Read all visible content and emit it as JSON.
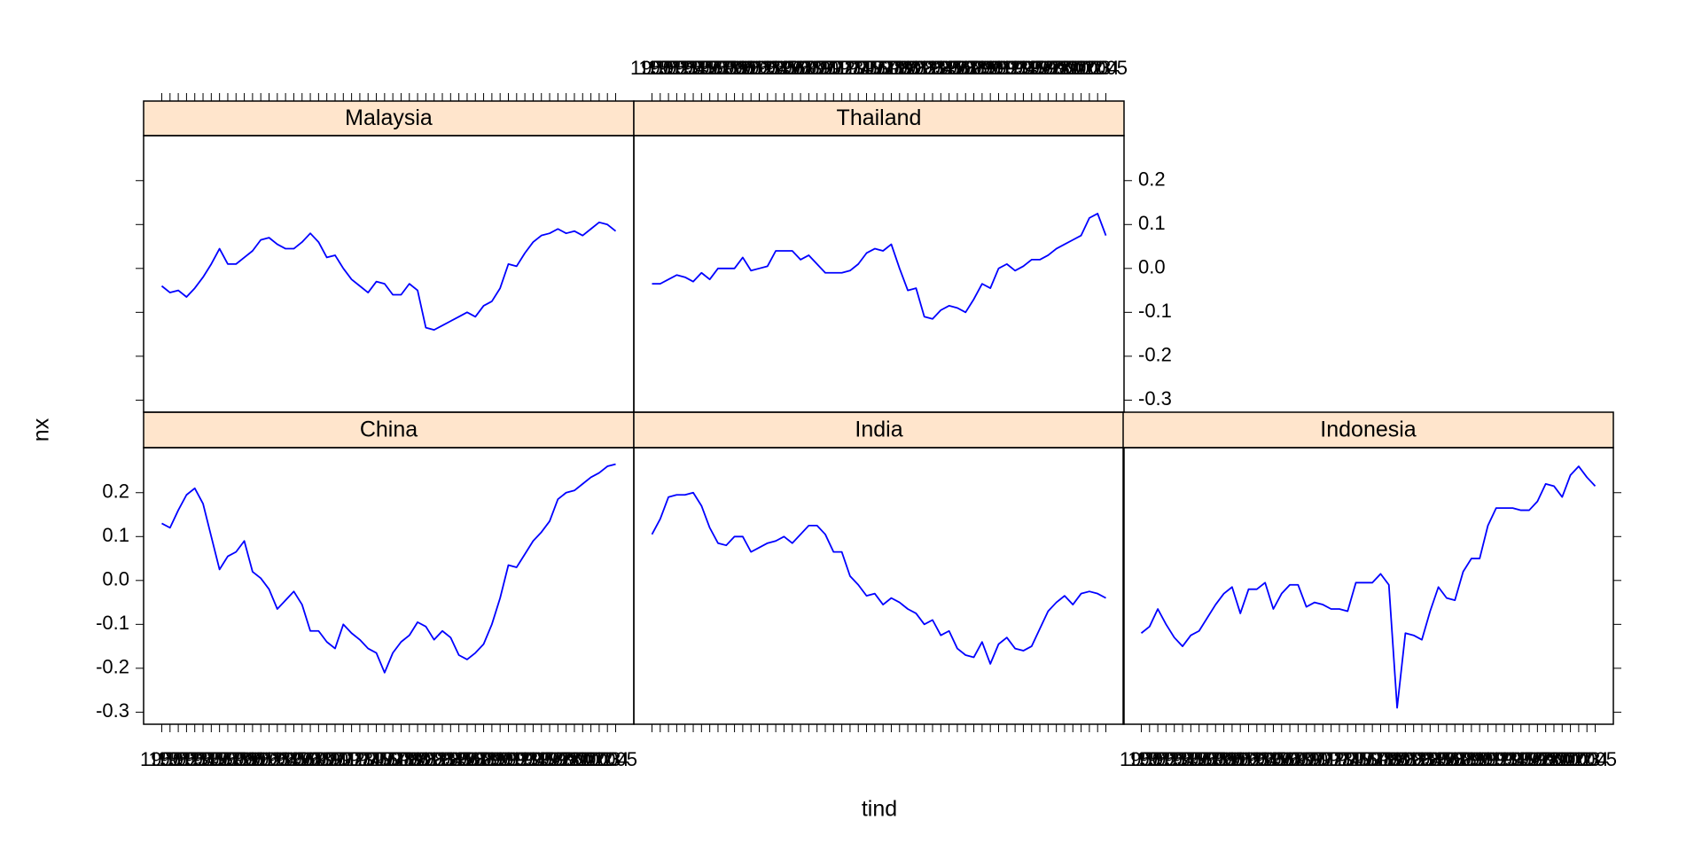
{
  "chart_data": {
    "type": "line",
    "xlabel": "tind",
    "ylabel": "nx",
    "color": "#0000ff",
    "x": [
      1950,
      1951,
      1952,
      1953,
      1954,
      1955,
      1956,
      1957,
      1958,
      1959,
      1960,
      1961,
      1962,
      1963,
      1964,
      1965,
      1966,
      1967,
      1968,
      1969,
      1970,
      1971,
      1972,
      1973,
      1974,
      1975,
      1976,
      1977,
      1978,
      1979,
      1980,
      1981,
      1982,
      1983,
      1984,
      1985,
      1986,
      1987,
      1988,
      1989,
      1990,
      1991,
      1992,
      1993,
      1994,
      1995,
      1996,
      1997,
      1998,
      1999,
      2000,
      2001,
      2002,
      2003,
      2004,
      2005
    ],
    "xlim": [
      1947.8,
      2007.2
    ],
    "ylim": [
      -0.3275,
      0.3025
    ],
    "yticks": [
      -0.3,
      -0.2,
      -0.1,
      {
        "value": 0,
        "label": "0.0"
      },
      0.1,
      0.2
    ],
    "panels": [
      {
        "title": "China",
        "values": [
          0.13,
          0.12,
          0.16,
          0.195,
          0.21,
          0.175,
          0.1,
          0.025,
          0.055,
          0.065,
          0.09,
          0.02,
          0.005,
          -0.02,
          -0.065,
          -0.045,
          -0.025,
          -0.055,
          -0.115,
          -0.115,
          -0.14,
          -0.155,
          -0.1,
          -0.12,
          -0.135,
          -0.155,
          -0.165,
          -0.21,
          -0.165,
          -0.14,
          -0.125,
          -0.095,
          -0.105,
          -0.135,
          -0.115,
          -0.13,
          -0.17,
          -0.18,
          -0.165,
          -0.145,
          -0.1,
          -0.04,
          0.035,
          0.03,
          0.06,
          0.09,
          0.11,
          0.135,
          0.185,
          0.2,
          0.205,
          0.22,
          0.235,
          0.245,
          0.26,
          0.265
        ]
      },
      {
        "title": "India",
        "values": [
          0.105,
          0.14,
          0.19,
          0.195,
          0.195,
          0.2,
          0.17,
          0.12,
          0.085,
          0.08,
          0.1,
          0.1,
          0.065,
          0.075,
          0.085,
          0.09,
          0.1,
          0.085,
          0.105,
          0.125,
          0.125,
          0.105,
          0.065,
          0.065,
          0.01,
          -0.01,
          -0.035,
          -0.03,
          -0.055,
          -0.04,
          -0.05,
          -0.065,
          -0.075,
          -0.1,
          -0.09,
          -0.125,
          -0.115,
          -0.155,
          -0.17,
          -0.175,
          -0.14,
          -0.19,
          -0.145,
          -0.13,
          -0.155,
          -0.16,
          -0.15,
          -0.11,
          -0.07,
          -0.05,
          -0.035,
          -0.055,
          -0.03,
          -0.025,
          -0.03,
          -0.04
        ]
      },
      {
        "title": "Indonesia",
        "values": [
          -0.12,
          -0.105,
          -0.065,
          -0.1,
          -0.13,
          -0.15,
          -0.125,
          -0.115,
          -0.085,
          -0.055,
          -0.03,
          -0.015,
          -0.075,
          -0.02,
          -0.02,
          -0.005,
          -0.065,
          -0.03,
          -0.01,
          -0.01,
          -0.06,
          -0.05,
          -0.055,
          -0.065,
          -0.065,
          -0.07,
          -0.005,
          -0.005,
          -0.005,
          0.015,
          -0.01,
          -0.29,
          -0.12,
          -0.125,
          -0.135,
          -0.07,
          -0.015,
          -0.04,
          -0.045,
          0.02,
          0.05,
          0.05,
          0.125,
          0.165,
          0.165,
          0.165,
          0.16,
          0.16,
          0.18,
          0.22,
          0.215,
          0.19,
          0.24,
          0.26,
          0.235,
          0.215
        ]
      },
      {
        "title": "Malaysia",
        "values": [
          -0.04,
          -0.055,
          -0.05,
          -0.065,
          -0.045,
          -0.02,
          0.01,
          0.045,
          0.01,
          0.01,
          0.025,
          0.04,
          0.065,
          0.07,
          0.055,
          0.045,
          0.045,
          0.06,
          0.08,
          0.06,
          0.025,
          0.03,
          0,
          -0.025,
          -0.04,
          -0.055,
          -0.03,
          -0.035,
          -0.06,
          -0.06,
          -0.035,
          -0.05,
          -0.135,
          -0.14,
          -0.13,
          -0.12,
          -0.11,
          -0.1,
          -0.11,
          -0.085,
          -0.075,
          -0.045,
          0.01,
          0.005,
          0.035,
          0.06,
          0.075,
          0.08,
          0.09,
          0.08,
          0.085,
          0.075,
          0.09,
          0.105,
          0.1,
          0.085
        ]
      },
      {
        "title": "Thailand",
        "values": [
          -0.035,
          -0.035,
          -0.025,
          -0.015,
          -0.02,
          -0.03,
          -0.01,
          -0.025,
          0,
          0,
          0,
          0.025,
          -0.005,
          0,
          0.005,
          0.04,
          0.04,
          0.04,
          0.02,
          0.03,
          0.01,
          -0.01,
          -0.01,
          -0.01,
          -0.005,
          0.01,
          0.035,
          0.045,
          0.04,
          0.055,
          0,
          -0.05,
          -0.045,
          -0.11,
          -0.115,
          -0.095,
          -0.085,
          -0.09,
          -0.1,
          -0.07,
          -0.035,
          -0.045,
          0,
          0.01,
          -0.005,
          0.005,
          0.02,
          0.02,
          0.03,
          0.045,
          0.055,
          0.065,
          0.075,
          0.115,
          0.125,
          0.075
        ]
      }
    ]
  }
}
